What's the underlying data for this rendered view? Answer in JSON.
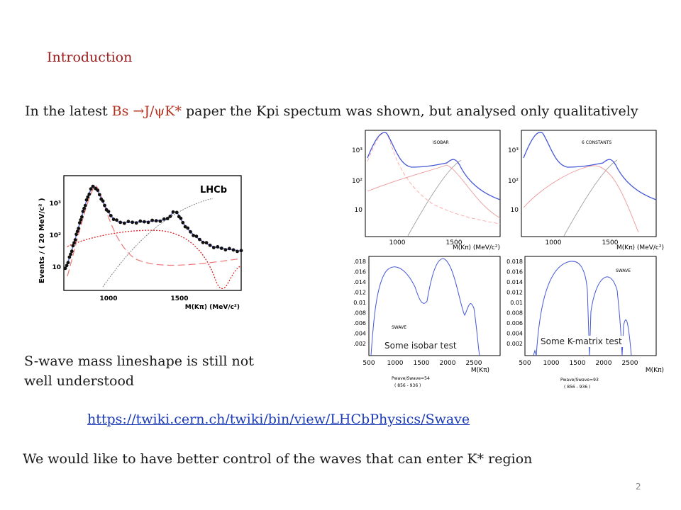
{
  "slide": {
    "title": "Introduction",
    "intro_pre": "In the latest ",
    "intro_decay": "Bs →J/ψK*",
    "intro_post": " paper the Kpi spectum was shown, but analysed only qualitatively",
    "swave_line1": "S-wave mass lineshape is still not",
    "swave_line2": "well understood",
    "link": "https://twiki.cern.ch/twiki/bin/view/LHCbPhysics/Swave",
    "bottom": "We would like to have better control of the waves that can enter K* region",
    "page_number": "2"
  },
  "lhcb_plot": {
    "logo": "LHCb",
    "ylabel": "Events / ( 20 MeV/c² )",
    "xlabel": "M(Kπ)  (MeV/c²)",
    "yticks": [
      "10",
      "10²",
      "10³"
    ],
    "xticks": [
      "1000",
      "1500"
    ]
  },
  "top_panels": {
    "left_tag": "ISOBAR",
    "right_tag": "6 CONSTANTS",
    "yticks": [
      "10³",
      "10²",
      "10"
    ],
    "xticks": [
      "1000",
      "1500"
    ],
    "xlabel": "M(Kπ)  (MeV/c²)"
  },
  "bottom_panels": {
    "yticks": [
      ".018",
      ".016",
      ".014",
      ".012",
      "0.01",
      ".008",
      ".006",
      ".004",
      ".002"
    ],
    "right_yticks": [
      "0.018",
      "0.016",
      "0.014",
      "0.012",
      "0.01",
      "0.008",
      "0.006",
      "0.004",
      "0.002"
    ],
    "xticks": [
      "500",
      "1000",
      "1500",
      "2000",
      "2500"
    ],
    "xlabel": "M(Kπ)",
    "left_tag": "SWAVE",
    "right_tag": "SWAVE",
    "left_caption": "Some isobar test",
    "right_caption": "Some K-matrix test",
    "left_ratio": "Pwave/Swave=54",
    "left_range": "( 856 - 936 )",
    "right_ratio": "Pwave/Swave=93",
    "right_range": "( 856 - 936 )"
  }
}
